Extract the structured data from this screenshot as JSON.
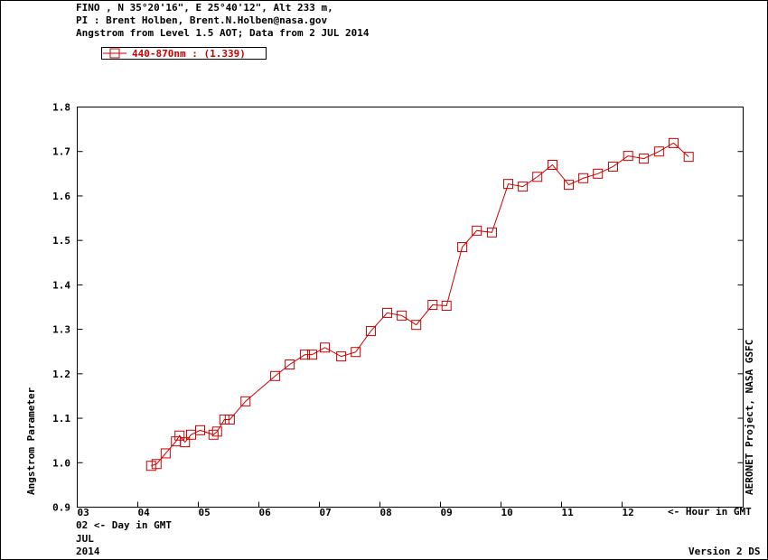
{
  "chart_data": {
    "type": "line",
    "header": [
      "FINO , N 35°20'16\", E 25°40'12\", Alt 233 m,",
      "PI : Brent Holben, Brent.N.Holben@nasa.gov",
      "Angstrom from Level 1.5 AOT; Data from 2 JUL 2014"
    ],
    "y_label": "Angstrom Parameter",
    "x_label": "<- Hour in GMT",
    "day_label": "02  <- Day in GMT",
    "month_label": "JUL",
    "year_label": "2014",
    "right_label": "AERONET Project, NASA GSFC",
    "version_label": "Version 2 DS",
    "xlim": [
      3,
      14
    ],
    "xticks": [
      {
        "value": 3,
        "label": "03"
      },
      {
        "value": 4,
        "label": "04"
      },
      {
        "value": 5,
        "label": "05"
      },
      {
        "value": 6,
        "label": "06"
      },
      {
        "value": 7,
        "label": "07"
      },
      {
        "value": 8,
        "label": "08"
      },
      {
        "value": 9,
        "label": "09"
      },
      {
        "value": 10,
        "label": "10"
      },
      {
        "value": 11,
        "label": "11"
      },
      {
        "value": 12,
        "label": "12"
      }
    ],
    "ylim": [
      0.9,
      1.8
    ],
    "yticks": [
      0.9,
      {
        "value": 1,
        "label": "1.0"
      },
      1.1,
      1.2,
      1.3,
      1.4,
      1.5,
      1.6,
      1.7,
      1.8
    ],
    "x": [
      4.22,
      4.31,
      4.46,
      4.63,
      4.69,
      4.78,
      4.88,
      5.03,
      5.25,
      5.31,
      5.43,
      5.52,
      5.78,
      6.27,
      6.51,
      6.76,
      6.88,
      7.09,
      7.36,
      7.6,
      7.85,
      8.12,
      8.36,
      8.6,
      8.87,
      9.1,
      9.36,
      9.6,
      9.85,
      10.12,
      10.36,
      10.6,
      10.85,
      11.12,
      11.36,
      11.6,
      11.85,
      12.1,
      12.36,
      12.61,
      12.85,
      13.1
    ],
    "series": [
      {
        "name": "440-870nm  : (1.339)",
        "color": "#cc0000",
        "values": [
          0.993,
          0.997,
          1.021,
          1.048,
          1.061,
          1.046,
          1.063,
          1.073,
          1.063,
          1.07,
          1.097,
          1.097,
          1.138,
          1.195,
          1.221,
          1.243,
          1.243,
          1.259,
          1.239,
          1.249,
          1.296,
          1.337,
          1.331,
          1.31,
          1.355,
          1.353,
          1.485,
          1.522,
          1.518,
          1.627,
          1.621,
          1.643,
          1.67,
          1.625,
          1.64,
          1.65,
          1.666,
          1.69,
          1.684,
          1.7,
          1.719,
          1.688
        ]
      }
    ]
  }
}
